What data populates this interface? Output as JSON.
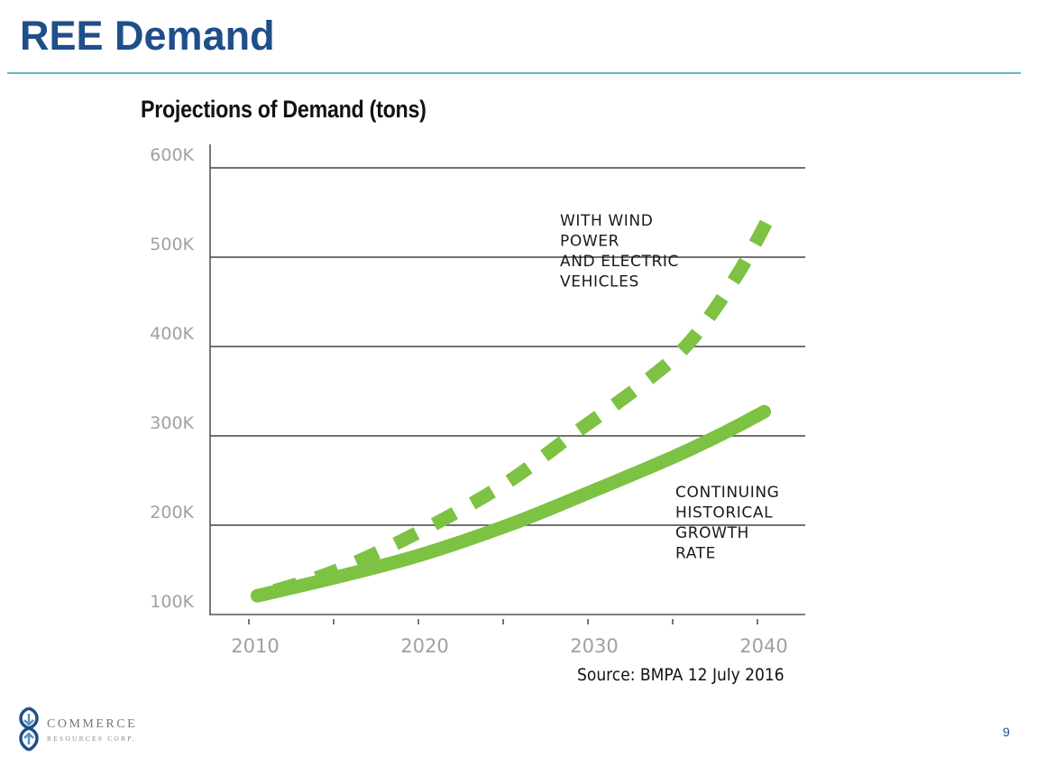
{
  "slide": {
    "title": "REE Demand",
    "page_number": "9",
    "source": "Source: BMPA 12 July 2016",
    "accent_color": "#1f4e8a",
    "divider_color": "#64b6c9"
  },
  "logo": {
    "name": "COMMERCE",
    "subtitle": "RESOURCES CORP."
  },
  "chart_data": {
    "type": "line",
    "title": "Projections of Demand (tons)",
    "xlabel": "",
    "ylabel": "",
    "xlim": [
      2007.75,
      2043.3
    ],
    "ylim": [
      100000,
      600000
    ],
    "x_ticks": [
      2010,
      2015,
      2020,
      2025,
      2030,
      2035,
      2040
    ],
    "x_tick_labels": [
      "2010",
      "",
      "2020",
      "",
      "2030",
      "",
      "2040"
    ],
    "y_ticks": [
      100000,
      200000,
      300000,
      400000,
      500000,
      600000
    ],
    "y_tick_labels": [
      "100K",
      "200K",
      "300K",
      "400K",
      "500K",
      "600K"
    ],
    "grid": "horizontal",
    "line_color": "#7dc242",
    "series": [
      {
        "name": "With wind power and electric vehicles",
        "style": "dashed",
        "label": [
          "WITH WIND",
          "POWER",
          "AND ELECTRIC",
          "VEHICLES"
        ],
        "x": [
          2010.5,
          2015,
          2020,
          2025,
          2029,
          2033,
          2036,
          2038.8,
          2041
        ],
        "values": [
          121000,
          148000,
          192000,
          245000,
          300000,
          355000,
          405000,
          480000,
          556000
        ]
      },
      {
        "name": "Continuing historical growth rate",
        "style": "solid",
        "label": [
          "CONTINUING",
          "HISTORICAL",
          "GROWTH",
          "RATE"
        ],
        "x": [
          2010.5,
          2015,
          2020,
          2025.3,
          2030,
          2035,
          2038,
          2040.4
        ],
        "values": [
          121000,
          141000,
          166000,
          200000,
          236000,
          276000,
          303000,
          327000
        ]
      }
    ]
  }
}
